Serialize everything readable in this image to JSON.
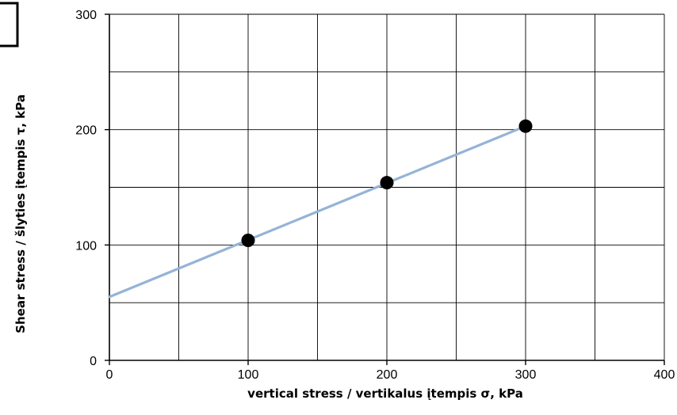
{
  "chart_data": {
    "type": "scatter",
    "title": "",
    "xlabel": "vertical stress / vertikalus įtempis σ, kPa",
    "ylabel": "Shear stress / šlyties įtempis τ, kPa",
    "xlim": [
      0,
      400
    ],
    "ylim": [
      0,
      300
    ],
    "x_ticks": [
      "0",
      "100",
      "200",
      "300",
      "400"
    ],
    "y_ticks": [
      "0",
      "100",
      "200",
      "300"
    ],
    "grid": true,
    "points": [
      {
        "x": 100,
        "y": 104
      },
      {
        "x": 200,
        "y": 154
      },
      {
        "x": 300,
        "y": 203
      }
    ],
    "trendline": {
      "x": [
        0,
        300
      ],
      "y": [
        55,
        203
      ]
    },
    "colors": {
      "points": "#000000",
      "trendline": "#95b3d7",
      "grid": "#000000"
    }
  }
}
